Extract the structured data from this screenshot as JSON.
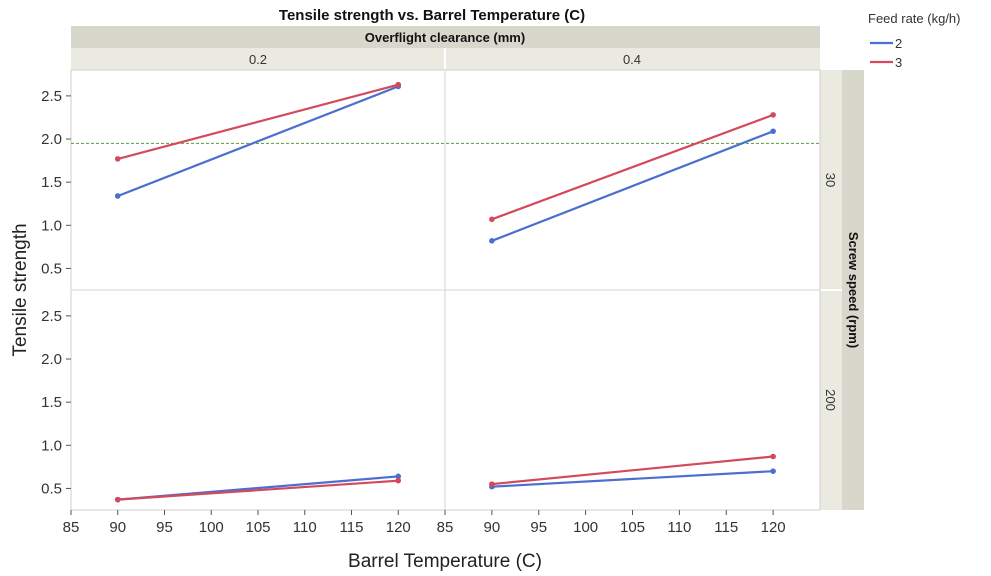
{
  "chart_data": {
    "type": "line",
    "title": "Tensile strength vs. Barrel Temperature (C)",
    "xlabel": "Barrel Temperature (C)",
    "ylabel": "Tensile strength",
    "column_facet": {
      "title": "Overflight clearance (mm)",
      "levels": [
        "0.2",
        "0.4"
      ]
    },
    "row_facet": {
      "title": "Screw speed (rpm)",
      "levels": [
        "30",
        "200"
      ]
    },
    "legend": {
      "title": "Feed rate (kg/h)",
      "position": "top-right",
      "entries": [
        {
          "label": "2",
          "color": "#4a6fd0"
        },
        {
          "label": "3",
          "color": "#d34a5a"
        }
      ]
    },
    "xlim": [
      85,
      125
    ],
    "xticks": [
      85,
      90,
      95,
      100,
      105,
      110,
      115,
      120
    ],
    "ylim": [
      0.25,
      2.8
    ],
    "yticks": [
      0.5,
      1.0,
      1.5,
      2.0,
      2.5
    ],
    "ytick_labels": [
      "0.5",
      "1.0",
      "1.5",
      "2.0",
      "2.5"
    ],
    "reference_line": {
      "y": 1.95,
      "color": "#5a9a3a"
    },
    "panels": [
      {
        "row": "30",
        "col": "0.2",
        "series": [
          {
            "name": "2",
            "x": [
              90,
              120
            ],
            "y": [
              1.34,
              2.61
            ]
          },
          {
            "name": "3",
            "x": [
              90,
              120
            ],
            "y": [
              1.77,
              2.63
            ]
          }
        ]
      },
      {
        "row": "30",
        "col": "0.4",
        "series": [
          {
            "name": "2",
            "x": [
              90,
              120
            ],
            "y": [
              0.82,
              2.09
            ]
          },
          {
            "name": "3",
            "x": [
              90,
              120
            ],
            "y": [
              1.07,
              2.28
            ]
          }
        ]
      },
      {
        "row": "200",
        "col": "0.2",
        "series": [
          {
            "name": "2",
            "x": [
              90,
              120
            ],
            "y": [
              0.37,
              0.64
            ]
          },
          {
            "name": "3",
            "x": [
              90,
              120
            ],
            "y": [
              0.37,
              0.59
            ]
          }
        ]
      },
      {
        "row": "200",
        "col": "0.4",
        "series": [
          {
            "name": "2",
            "x": [
              90,
              120
            ],
            "y": [
              0.52,
              0.7
            ]
          },
          {
            "name": "3",
            "x": [
              90,
              120
            ],
            "y": [
              0.55,
              0.87
            ]
          }
        ]
      }
    ]
  }
}
